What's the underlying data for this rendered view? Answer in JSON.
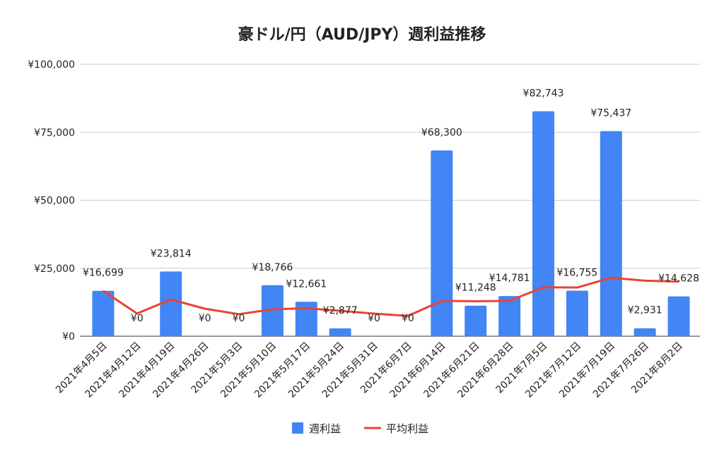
{
  "chart_data": {
    "type": "bar",
    "title": "豪ドル/円（AUD/JPY）週利益推移",
    "categories": [
      "2021年4月5日",
      "2021年4月12日",
      "2021年4月19日",
      "2021年4月26日",
      "2021年5月3日",
      "2021年5月10日",
      "2021年5月17日",
      "2021年5月24日",
      "2021年5月31日",
      "2021年6月7日",
      "2021年6月14日",
      "2021年6月21日",
      "2021年6月28日",
      "2021年7月5日",
      "2021年7月12日",
      "2021年7月19日",
      "2021年7月26日",
      "2021年8月2日"
    ],
    "series": [
      {
        "name": "週利益",
        "type": "bar",
        "color": "#4285f4",
        "values": [
          16699,
          0,
          23814,
          0,
          0,
          18766,
          12661,
          2877,
          0,
          0,
          68300,
          11248,
          14781,
          82743,
          16755,
          75437,
          2931,
          14628
        ],
        "data_labels": [
          "¥16,699",
          "¥0",
          "¥23,814",
          "¥0",
          "¥0",
          "¥18,766",
          "¥12,661",
          "¥2,877",
          "¥0",
          "¥0",
          "¥68,300",
          "¥11,248",
          "¥14,781",
          "¥82,743",
          "¥16,755",
          "¥75,437",
          "¥2,931",
          "¥14,628"
        ]
      },
      {
        "name": "平均利益",
        "type": "line",
        "color": "#ea4335",
        "values": [
          16699,
          8350,
          13504,
          10128,
          8103,
          9880,
          10277,
          9352,
          8313,
          7482,
          13011,
          12864,
          13011,
          17992,
          17910,
          21505,
          20412,
          20091
        ]
      }
    ],
    "ylim": [
      0,
      100000
    ],
    "yticks": [
      0,
      25000,
      50000,
      75000,
      100000
    ],
    "ytick_labels": [
      "¥0",
      "¥25,000",
      "¥50,000",
      "¥75,000",
      "¥100,000"
    ],
    "xlabel": "",
    "ylabel": "",
    "grid": true,
    "legend": "bottom"
  }
}
